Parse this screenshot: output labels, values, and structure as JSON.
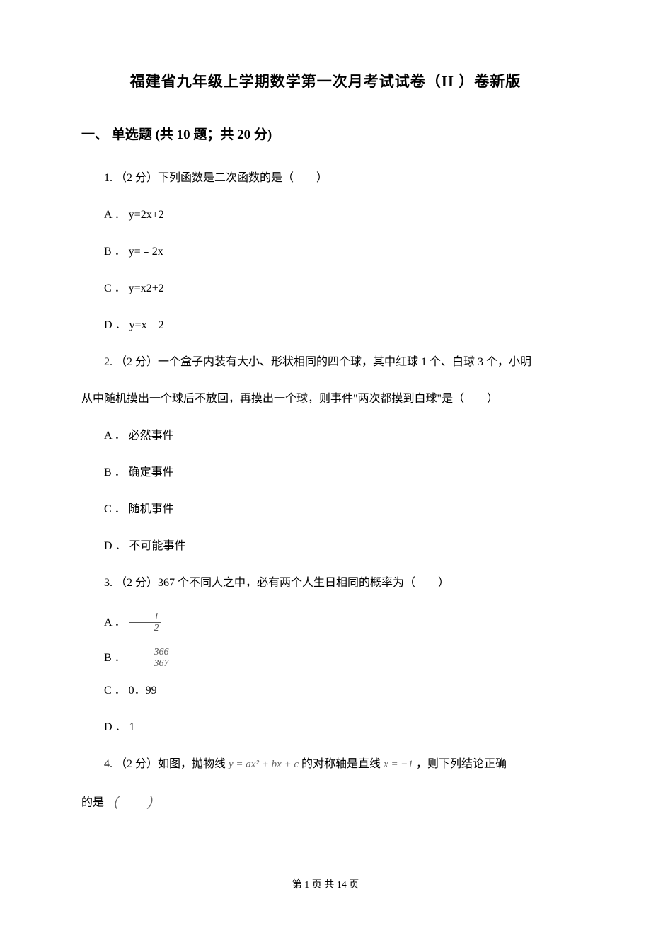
{
  "title": "福建省九年级上学期数学第一次月考试试卷（II ）卷新版",
  "section1": {
    "header": "一、 单选题 (共 10 题；共 20 分)"
  },
  "q1": {
    "stem": "1. （2 分）下列函数是二次函数的是（　　）",
    "a": "A ． y=2x+2",
    "b": "B ． y=﹣2x",
    "c": "C ． y=x2+2",
    "d": "D ． y=x﹣2"
  },
  "q2": {
    "stem_line1": "2. （2 分）一个盒子内装有大小、形状相同的四个球，其中红球 1 个、白球 3 个，小明",
    "stem_line2": "从中随机摸出一个球后不放回，再摸出一个球，则事件\"两次都摸到白球\"是（　　）",
    "a": "A ． 必然事件",
    "b": "B ． 确定事件",
    "c": "C ． 随机事件",
    "d": "D ． 不可能事件"
  },
  "q3": {
    "stem": "3. （2 分）367 个不同人之中，必有两个人生日相同的概率为（　　）",
    "a_label": "A ．",
    "a_num": "1",
    "a_den": "2",
    "b_label": "B ．",
    "b_num": "366",
    "b_den": "367",
    "c": "C ． 0．99",
    "d": "D ． 1"
  },
  "q4": {
    "stem_pre": "4. （2 分）如图，抛物线 ",
    "formula1": "y = ax² + bx + c",
    "stem_mid": " 的对称轴是直线 ",
    "formula2": "x = −1",
    "stem_post": " ，则下列结论正确",
    "line2_pre": "的是",
    "paren_open": "（",
    "paren_close": "）"
  },
  "footer": "第 1 页 共 14 页"
}
